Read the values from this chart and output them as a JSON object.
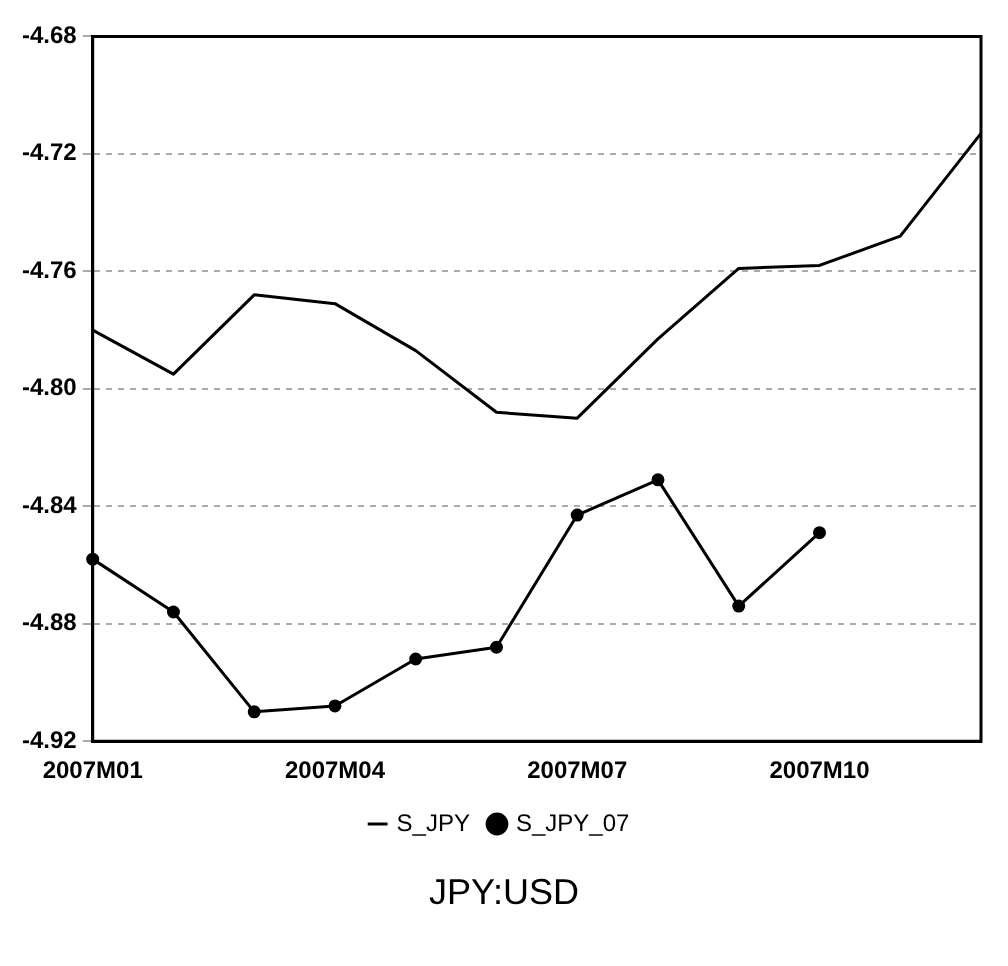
{
  "chart_data": {
    "type": "line",
    "title": "JPY:USD",
    "categories": [
      "2007M01",
      null,
      null,
      "2007M04",
      null,
      null,
      "2007M07",
      null,
      null,
      "2007M10",
      null,
      null
    ],
    "series": [
      {
        "name": "S_JPY",
        "color": "#000000",
        "marker": "none",
        "values": [
          -4.78,
          -4.795,
          -4.768,
          -4.771,
          -4.787,
          -4.808,
          -4.81,
          -4.783,
          -4.759,
          -4.758,
          -4.748,
          -4.713
        ]
      },
      {
        "name": "S_JPY_07",
        "color": "#000000",
        "marker": "circle",
        "values": [
          -4.858,
          -4.876,
          -4.91,
          -4.908,
          -4.892,
          -4.888,
          -4.843,
          -4.831,
          -4.874,
          -4.849,
          null,
          null
        ]
      }
    ],
    "ylim": [
      -4.92,
      -4.68
    ],
    "yticks": [
      {
        "value": -4.92,
        "label": "-4.92"
      },
      {
        "value": -4.88,
        "label": "-4.88"
      },
      {
        "value": -4.84,
        "label": "-4.84"
      },
      {
        "value": -4.8,
        "label": "-4.80"
      },
      {
        "value": -4.76,
        "label": "-4.76"
      },
      {
        "value": -4.72,
        "label": "-4.72"
      },
      {
        "value": -4.68,
        "label": "-4.68"
      }
    ],
    "grid": "y",
    "legend": "bottom",
    "line_style": "solid"
  }
}
